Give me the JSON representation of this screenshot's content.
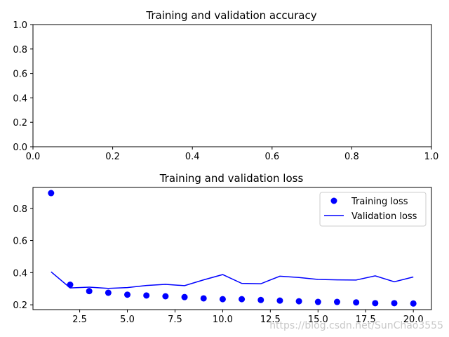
{
  "chart_data": [
    {
      "type": "line",
      "title": "Training and validation accuracy",
      "xlim": [
        0,
        1
      ],
      "ylim": [
        0,
        1
      ],
      "xticks": [
        "0.0",
        "0.2",
        "0.4",
        "0.6",
        "0.8",
        "1.0"
      ],
      "yticks": [
        "0.0",
        "0.2",
        "0.4",
        "0.6",
        "0.8",
        "1.0"
      ],
      "series": [],
      "grid": false
    },
    {
      "type": "line",
      "title": "Training and validation loss",
      "xlim": [
        0.05,
        20.95
      ],
      "ylim": [
        0.17,
        0.93
      ],
      "xticks": [
        "2.5",
        "5.0",
        "7.5",
        "10.0",
        "12.5",
        "15.0",
        "17.5",
        "20.0"
      ],
      "yticks": [
        "0.2",
        "0.4",
        "0.6",
        "0.8"
      ],
      "x": [
        1,
        2,
        3,
        4,
        5,
        6,
        7,
        8,
        9,
        10,
        11,
        12,
        13,
        14,
        15,
        16,
        17,
        18,
        19,
        20
      ],
      "series": [
        {
          "name": "Training loss",
          "style": "points",
          "color": "#0000ff",
          "values": [
            0.895,
            0.325,
            0.285,
            0.275,
            0.263,
            0.258,
            0.253,
            0.248,
            0.24,
            0.235,
            0.235,
            0.23,
            0.226,
            0.222,
            0.218,
            0.218,
            0.215,
            0.21,
            0.21,
            0.208
          ]
        },
        {
          "name": "Validation loss",
          "style": "line",
          "color": "#0000ff",
          "values": [
            0.405,
            0.305,
            0.31,
            0.302,
            0.307,
            0.32,
            0.327,
            0.319,
            0.355,
            0.388,
            0.333,
            0.331,
            0.378,
            0.37,
            0.358,
            0.355,
            0.354,
            0.38,
            0.343,
            0.373
          ]
        }
      ],
      "legend": "top-right",
      "grid": false
    }
  ],
  "watermark": "https://blog.csdn.net/SunChao3555"
}
